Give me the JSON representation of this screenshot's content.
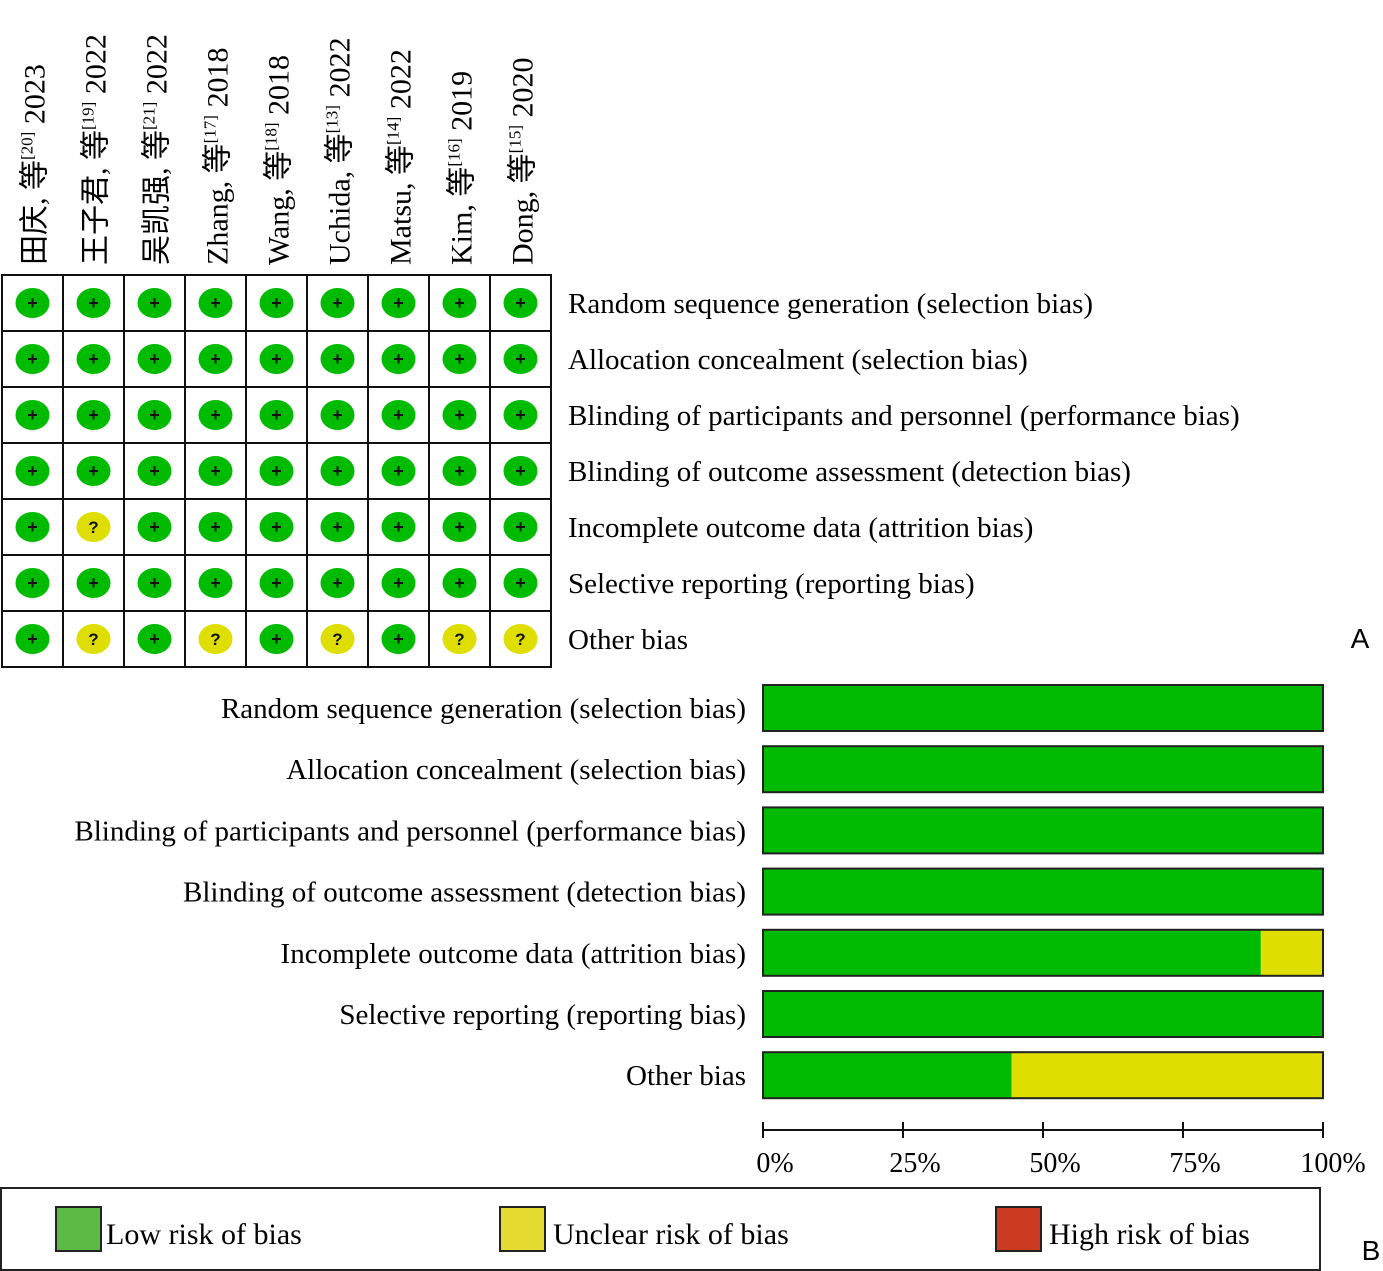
{
  "panel_labels": {
    "a": "A",
    "b": "B"
  },
  "colors": {
    "low": "#00bb00",
    "unclear": "#dede00",
    "high": "#d03020",
    "legend_low": "#5cb944",
    "legend_unclear": "#e4da30",
    "legend_high": "#cc3a22"
  },
  "icons": {
    "low": "plus-icon",
    "unclear": "question-icon"
  },
  "symbols": {
    "low": "+",
    "unclear": "?"
  },
  "legend": {
    "low": "Low risk of bias",
    "unclear": "Unclear risk of bias",
    "high": "High risk of bias"
  },
  "chart_data": [
    {
      "type": "table",
      "panel": "A",
      "columns": [
        {
          "author": "田庆, 等",
          "ref": "[20]",
          "year": "2023"
        },
        {
          "author": "王子君, 等",
          "ref": "[19]",
          "year": "2022"
        },
        {
          "author": "吴凯强, 等",
          "ref": "[21]",
          "year": "2022"
        },
        {
          "author": "Zhang, 等",
          "ref": "[17]",
          "year": "2018"
        },
        {
          "author": "Wang, 等",
          "ref": "[18]",
          "year": "2018"
        },
        {
          "author": "Uchida, 等",
          "ref": "[13]",
          "year": "2022"
        },
        {
          "author": "Matsu, 等",
          "ref": "[14]",
          "year": "2022"
        },
        {
          "author": "Kim, 等",
          "ref": "[16]",
          "year": "2019"
        },
        {
          "author": "Dong, 等",
          "ref": "[15]",
          "year": "2020"
        }
      ],
      "rows": [
        "Random sequence generation (selection bias)",
        "Allocation concealment (selection bias)",
        "Blinding of participants and personnel (performance bias)",
        "Blinding of outcome assessment (detection bias)",
        "Incomplete outcome data (attrition bias)",
        "Selective reporting (reporting bias)",
        "Other bias"
      ],
      "judgements": [
        [
          "low",
          "low",
          "low",
          "low",
          "low",
          "low",
          "low",
          "low",
          "low"
        ],
        [
          "low",
          "low",
          "low",
          "low",
          "low",
          "low",
          "low",
          "low",
          "low"
        ],
        [
          "low",
          "low",
          "low",
          "low",
          "low",
          "low",
          "low",
          "low",
          "low"
        ],
        [
          "low",
          "low",
          "low",
          "low",
          "low",
          "low",
          "low",
          "low",
          "low"
        ],
        [
          "low",
          "unclear",
          "low",
          "low",
          "low",
          "low",
          "low",
          "low",
          "low"
        ],
        [
          "low",
          "low",
          "low",
          "low",
          "low",
          "low",
          "low",
          "low",
          "low"
        ],
        [
          "low",
          "unclear",
          "low",
          "unclear",
          "low",
          "unclear",
          "low",
          "unclear",
          "unclear"
        ]
      ]
    },
    {
      "type": "bar",
      "panel": "B",
      "orientation": "horizontal",
      "stacked": true,
      "categories": [
        "Random sequence generation (selection bias)",
        "Allocation concealment (selection bias)",
        "Blinding of participants and personnel (performance bias)",
        "Blinding of outcome assessment (detection bias)",
        "Incomplete outcome data (attrition bias)",
        "Selective reporting (reporting bias)",
        "Other bias"
      ],
      "series": [
        {
          "name": "Low risk of bias",
          "key": "low",
          "values": [
            100,
            100,
            100,
            100,
            88.9,
            100,
            44.4
          ]
        },
        {
          "name": "Unclear risk of bias",
          "key": "unclear",
          "values": [
            0,
            0,
            0,
            0,
            11.1,
            0,
            55.6
          ]
        },
        {
          "name": "High risk of bias",
          "key": "high",
          "values": [
            0,
            0,
            0,
            0,
            0,
            0,
            0
          ]
        }
      ],
      "xlim": [
        0,
        100
      ],
      "xticks": [
        "0%",
        "25%",
        "50%",
        "75%",
        "100%"
      ],
      "legend_position": "bottom"
    }
  ]
}
